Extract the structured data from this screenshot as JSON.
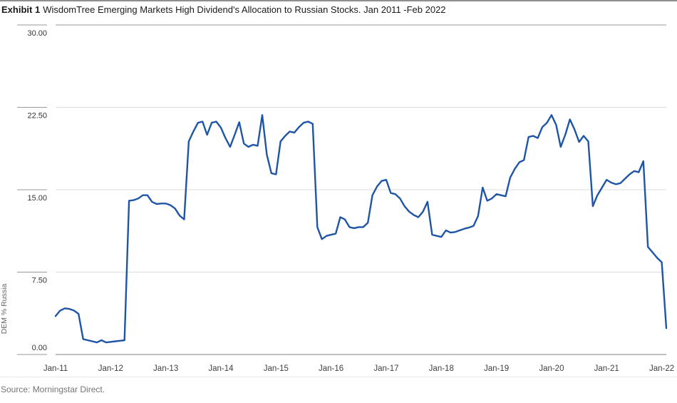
{
  "exhibit": {
    "label": "Exhibit 1",
    "title": "WisdomTree Emerging Markets High Dividend's Allocation to Russian Stocks. Jan 2011 -Feb 2022"
  },
  "source": "Source: Morningstar Direct.",
  "chart_data": {
    "type": "line",
    "title": "WisdomTree Emerging Markets High Dividend's Allocation to Russian Stocks. Jan 2011 -Feb 2022",
    "xlabel": "",
    "ylabel": "DEM % Russia",
    "ylim": [
      0,
      30
    ],
    "grid": "horizontal",
    "legend": "none",
    "line_color": "#1F55A5",
    "axis_color": "#808080",
    "gridline_color": "#dcdcdc",
    "tick_color": "#999999",
    "label_color": "#404040",
    "y_ticks": [
      {
        "label": "30.00",
        "value": 30
      },
      {
        "label": "22.50",
        "value": 22.5
      },
      {
        "label": "15.00",
        "value": 15
      },
      {
        "label": "7.50",
        "value": 7.5
      },
      {
        "label": "0.00",
        "value": 0
      }
    ],
    "x_tick_labels": [
      "Jan-11",
      "Jan-12",
      "Jan-13",
      "Jan-14",
      "Jan-15",
      "Jan-16",
      "Jan-17",
      "Jan-18",
      "Jan-19",
      "Jan-20",
      "Jan-21",
      "Jan-22"
    ],
    "series": [
      {
        "name": "DEM % Russia",
        "start_month": "2011-01",
        "end_month": "2022-02",
        "frequency": "monthly",
        "values": [
          3.5,
          4.0,
          4.2,
          4.15,
          4.0,
          3.7,
          1.4,
          1.3,
          1.2,
          1.1,
          1.3,
          1.1,
          1.15,
          1.2,
          1.25,
          1.3,
          14.0,
          14.05,
          14.2,
          14.5,
          14.5,
          13.9,
          13.7,
          13.75,
          13.75,
          13.6,
          13.3,
          12.65,
          12.3,
          19.4,
          20.3,
          21.1,
          21.2,
          20.0,
          21.1,
          21.2,
          20.65,
          19.7,
          18.9,
          20.0,
          21.15,
          19.2,
          18.9,
          19.1,
          19.0,
          21.8,
          18.2,
          16.5,
          16.4,
          19.4,
          19.9,
          20.3,
          20.2,
          20.7,
          21.1,
          21.2,
          21.0,
          11.6,
          10.5,
          10.8,
          10.9,
          11.0,
          12.5,
          12.3,
          11.6,
          11.5,
          11.6,
          11.6,
          12.0,
          14.5,
          15.3,
          15.8,
          15.9,
          14.7,
          14.6,
          14.2,
          13.5,
          13.0,
          12.7,
          12.5,
          13.0,
          13.9,
          10.9,
          10.8,
          10.7,
          11.3,
          11.1,
          11.15,
          11.3,
          11.45,
          11.55,
          11.7,
          12.6,
          15.2,
          14.0,
          14.2,
          14.6,
          14.5,
          14.4,
          16.1,
          16.9,
          17.5,
          17.7,
          19.8,
          19.9,
          19.7,
          20.7,
          21.1,
          21.8,
          20.9,
          18.9,
          20.0,
          21.4,
          20.5,
          19.35,
          19.9,
          19.4,
          13.5,
          14.5,
          15.2,
          15.9,
          15.65,
          15.5,
          15.6,
          16.0,
          16.4,
          16.7,
          16.6,
          17.6,
          9.8,
          9.3,
          8.8,
          8.4,
          2.4
        ]
      }
    ]
  }
}
